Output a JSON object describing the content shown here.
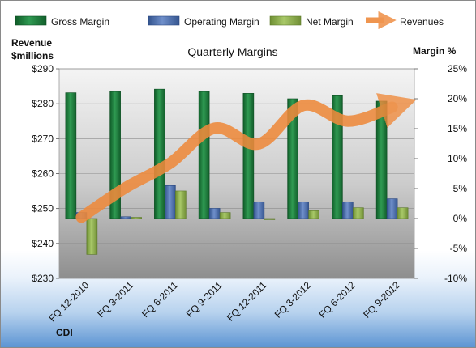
{
  "chart_data": {
    "type": "bar",
    "title": "Quarterly Margins",
    "company": "CDI",
    "left_axis_label": "Revenue\n$millions",
    "right_axis_label": "Margin %",
    "categories": [
      "FQ 12-2010",
      "FQ 3-2011",
      "FQ 6-2011",
      "FQ 9-2011",
      "FQ 12-2011",
      "FQ 3-2012",
      "FQ 6-2012",
      "FQ 9-2012"
    ],
    "series": [
      {
        "name": "Gross Margin",
        "axis": "right",
        "type": "bar",
        "color": "#1e7a3c",
        "values": [
          21.0,
          21.2,
          21.6,
          21.2,
          20.9,
          20.0,
          20.5,
          19.6
        ]
      },
      {
        "name": "Operating Margin",
        "axis": "right",
        "type": "bar",
        "color": "#4f6fae",
        "values": [
          1.0,
          0.3,
          5.5,
          1.7,
          2.8,
          2.8,
          2.8,
          3.3
        ]
      },
      {
        "name": "Net Margin",
        "axis": "right",
        "type": "bar",
        "color": "#8cae4a",
        "values": [
          -6.0,
          0.2,
          4.6,
          1.0,
          -0.2,
          1.3,
          1.8,
          1.8
        ]
      },
      {
        "name": "Revenues",
        "axis": "left",
        "type": "line",
        "color": "#ee8a3c",
        "values": [
          247.5,
          256.0,
          263.0,
          273.0,
          268.5,
          279.5,
          275.0,
          279.0
        ]
      }
    ],
    "left_ylim": [
      230,
      290
    ],
    "left_ticks": [
      "$230",
      "$240",
      "$250",
      "$260",
      "$270",
      "$280",
      "$290"
    ],
    "right_ylim": [
      -10,
      25
    ],
    "right_ticks": [
      "-10%",
      "-5%",
      "0%",
      "5%",
      "10%",
      "15%",
      "20%",
      "25%"
    ],
    "legend_position": "top"
  }
}
